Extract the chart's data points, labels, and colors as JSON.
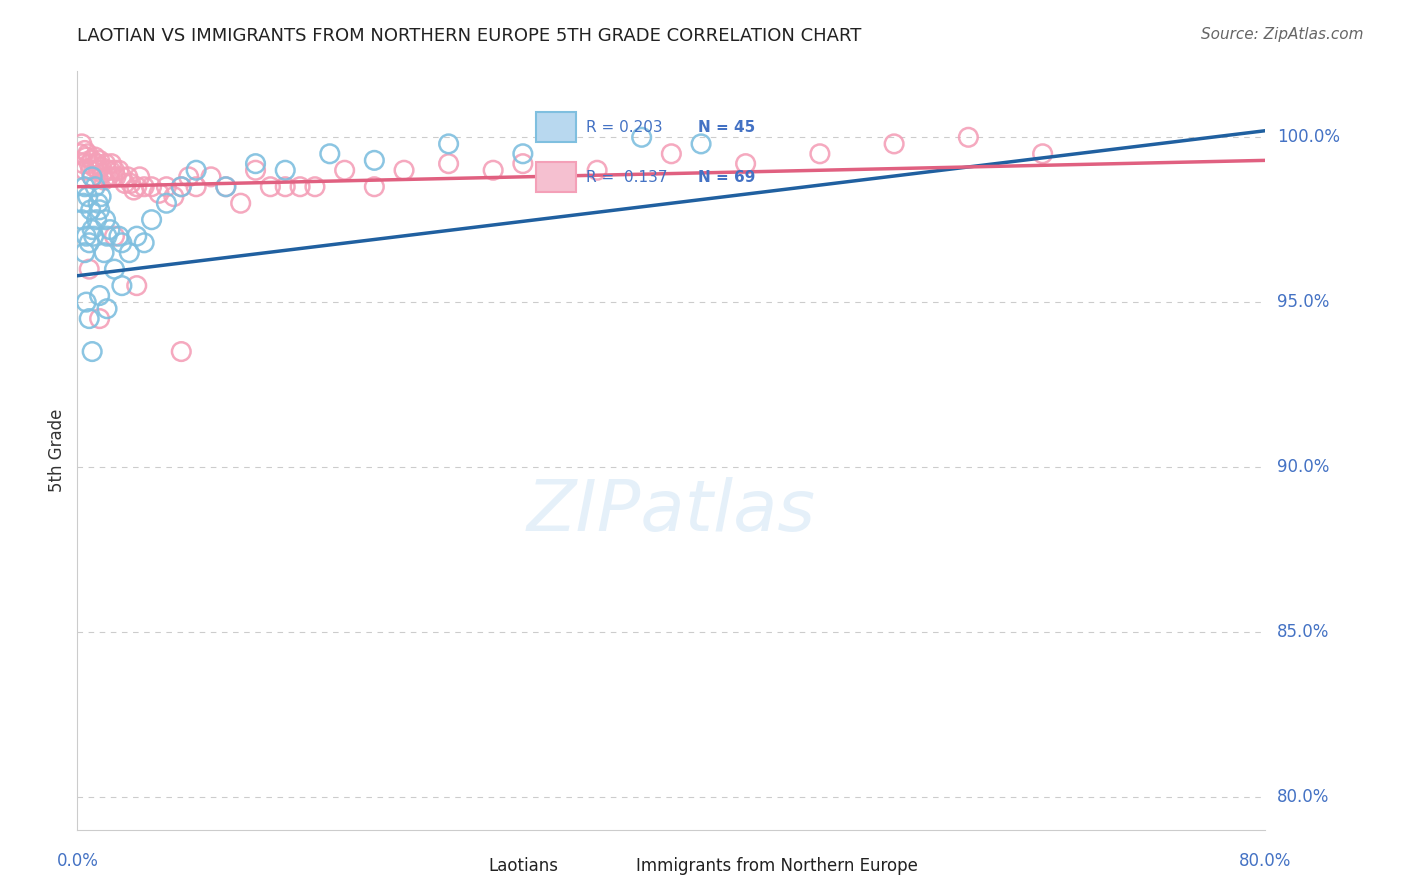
{
  "title": "LAOTIAN VS IMMIGRANTS FROM NORTHERN EUROPE 5TH GRADE CORRELATION CHART",
  "source": "Source: ZipAtlas.com",
  "ylabel": "5th Grade",
  "xlim": [
    0.0,
    80.0
  ],
  "ylim": [
    79.0,
    102.0
  ],
  "color_blue": "#7fbfdf",
  "color_pink": "#f4a0b8",
  "color_blue_line": "#2060a0",
  "color_pink_line": "#e06080",
  "color_ax": "#4472C4",
  "watermark": "ZIPatlas",
  "blue_trend": [
    95.8,
    100.2
  ],
  "pink_trend": [
    98.5,
    99.3
  ],
  "lao_x": [
    0.3,
    0.4,
    0.5,
    0.5,
    0.6,
    0.7,
    0.8,
    0.9,
    1.0,
    1.0,
    1.1,
    1.2,
    1.3,
    1.4,
    1.5,
    1.6,
    1.8,
    1.9,
    2.0,
    2.2,
    2.5,
    2.8,
    3.0,
    3.5,
    4.0,
    4.5,
    5.0,
    6.0,
    7.0,
    8.0,
    10.0,
    12.0,
    14.0,
    17.0,
    20.0,
    25.0,
    30.0,
    38.0,
    42.0,
    0.6,
    0.8,
    1.0,
    1.5,
    2.0,
    3.0
  ],
  "lao_y": [
    97.5,
    98.0,
    96.5,
    98.5,
    97.0,
    98.2,
    96.8,
    97.8,
    97.2,
    98.8,
    97.0,
    98.5,
    97.5,
    98.0,
    97.8,
    98.2,
    96.5,
    97.5,
    97.0,
    97.2,
    96.0,
    97.0,
    96.8,
    96.5,
    97.0,
    96.8,
    97.5,
    98.0,
    98.5,
    99.0,
    98.5,
    99.2,
    99.0,
    99.5,
    99.3,
    99.8,
    99.5,
    100.0,
    99.8,
    95.0,
    94.5,
    93.5,
    95.2,
    94.8,
    95.5
  ],
  "neu_x": [
    0.2,
    0.3,
    0.4,
    0.5,
    0.5,
    0.6,
    0.7,
    0.8,
    0.9,
    1.0,
    1.0,
    1.1,
    1.2,
    1.3,
    1.4,
    1.5,
    1.6,
    1.7,
    1.8,
    1.9,
    2.0,
    2.1,
    2.2,
    2.3,
    2.4,
    2.5,
    2.6,
    2.8,
    3.0,
    3.2,
    3.4,
    3.6,
    3.8,
    4.0,
    4.2,
    4.5,
    5.0,
    5.5,
    6.0,
    6.5,
    7.0,
    7.5,
    8.0,
    9.0,
    10.0,
    11.0,
    12.0,
    13.0,
    14.0,
    15.0,
    16.0,
    18.0,
    20.0,
    22.0,
    25.0,
    28.0,
    30.0,
    35.0,
    40.0,
    45.0,
    50.0,
    55.0,
    60.0,
    65.0,
    0.8,
    1.5,
    2.5,
    4.0,
    7.0
  ],
  "neu_y": [
    99.5,
    99.8,
    99.2,
    99.6,
    99.0,
    99.4,
    99.5,
    99.2,
    99.0,
    99.3,
    98.8,
    99.1,
    99.4,
    99.2,
    99.0,
    99.3,
    99.1,
    98.9,
    98.7,
    99.2,
    99.0,
    98.8,
    99.0,
    99.2,
    98.8,
    99.0,
    98.8,
    99.0,
    98.8,
    98.6,
    98.8,
    98.6,
    98.4,
    98.5,
    98.8,
    98.5,
    98.5,
    98.3,
    98.5,
    98.2,
    98.5,
    98.8,
    98.5,
    98.8,
    98.5,
    98.0,
    99.0,
    98.5,
    98.5,
    98.5,
    98.5,
    99.0,
    98.5,
    99.0,
    99.2,
    99.0,
    99.2,
    99.0,
    99.5,
    99.2,
    99.5,
    99.8,
    100.0,
    99.5,
    96.0,
    94.5,
    97.0,
    95.5,
    93.5
  ]
}
